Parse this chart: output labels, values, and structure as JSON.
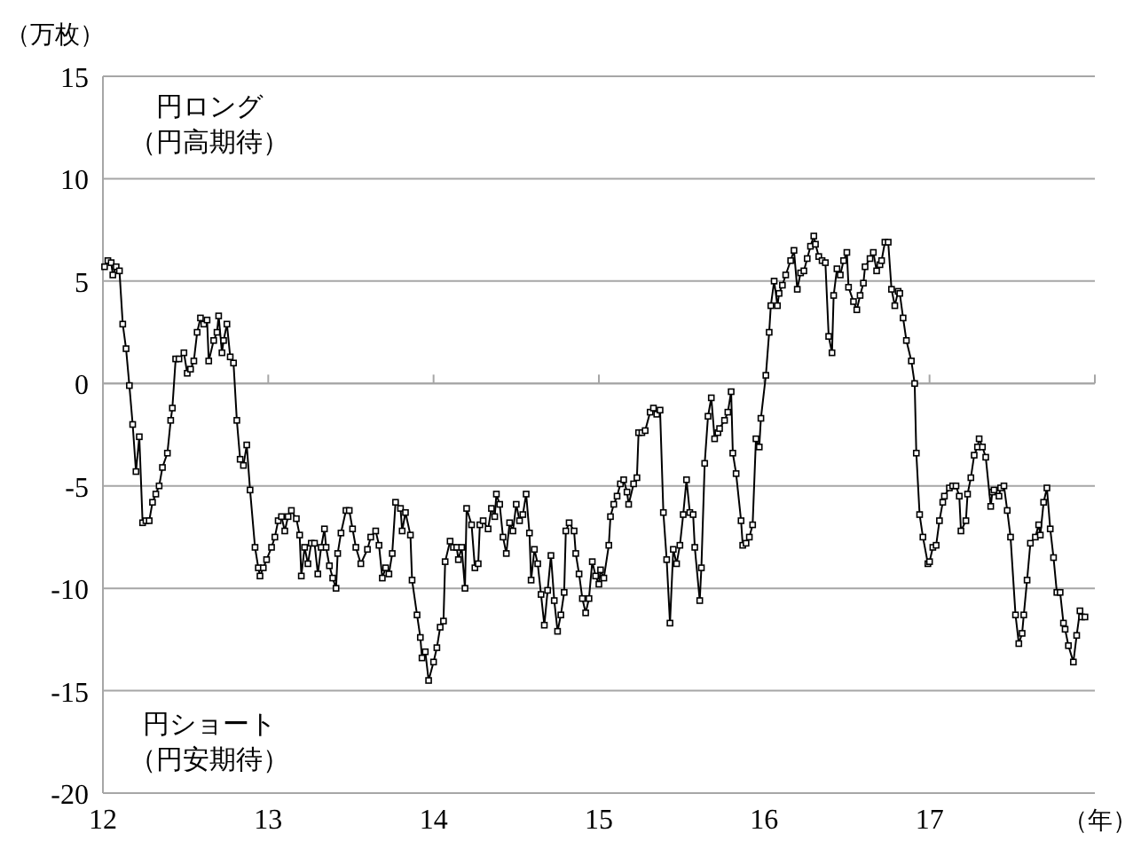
{
  "chart_data": {
    "type": "line",
    "ylabel": "（万枚）",
    "xlabel": "（年）",
    "annotations": [
      "円ロング",
      "（円高期待）",
      "円ショート",
      "（円安期待）"
    ],
    "xlim": [
      12,
      18
    ],
    "xticks": [
      12,
      13,
      14,
      15,
      16,
      17
    ],
    "ylim": [
      -20,
      15
    ],
    "yticks": [
      -20,
      -15,
      -10,
      -5,
      0,
      5,
      10,
      15
    ],
    "grid": "y",
    "marker": "square",
    "line_style": "solid",
    "series": [
      {
        "color": "#000000",
        "x": [
          12.01,
          12.03,
          12.05,
          12.06,
          12.08,
          12.1,
          12.12,
          12.14,
          12.16,
          12.18,
          12.2,
          12.22,
          12.24,
          12.26,
          12.28,
          12.3,
          12.32,
          12.34,
          12.36,
          12.39,
          12.41,
          12.42,
          12.44,
          12.46,
          12.49,
          12.51,
          12.53,
          12.55,
          12.57,
          12.59,
          12.61,
          12.63,
          12.64,
          12.67,
          12.69,
          12.7,
          12.72,
          12.73,
          12.75,
          12.77,
          12.79,
          12.81,
          12.83,
          12.85,
          12.87,
          12.89,
          12.92,
          12.94,
          12.95,
          12.97,
          12.99,
          13.02,
          13.04,
          13.06,
          13.08,
          13.1,
          13.12,
          13.14,
          13.17,
          13.19,
          13.2,
          13.22,
          13.24,
          13.26,
          13.28,
          13.3,
          13.32,
          13.34,
          13.35,
          13.37,
          13.39,
          13.41,
          13.42,
          13.44,
          13.47,
          13.49,
          13.51,
          13.53,
          13.56,
          13.6,
          13.62,
          13.65,
          13.67,
          13.69,
          13.71,
          13.73,
          13.75,
          13.77,
          13.8,
          13.81,
          13.83,
          13.86,
          13.87,
          13.9,
          13.92,
          13.93,
          13.95,
          13.97,
          14.0,
          14.02,
          14.04,
          14.06,
          14.07,
          14.1,
          14.12,
          14.14,
          14.15,
          14.17,
          14.19,
          14.2,
          14.23,
          14.25,
          14.27,
          14.28,
          14.3,
          14.33,
          14.35,
          14.37,
          14.38,
          14.4,
          14.42,
          14.44,
          14.46,
          14.48,
          14.5,
          14.52,
          14.54,
          14.56,
          14.58,
          14.59,
          14.61,
          14.63,
          14.65,
          14.67,
          14.69,
          14.71,
          14.73,
          14.75,
          14.77,
          14.79,
          14.8,
          14.82,
          14.85,
          14.86,
          14.88,
          14.9,
          14.92,
          14.94,
          14.96,
          14.98,
          15.0,
          15.01,
          15.03,
          15.06,
          15.07,
          15.09,
          15.11,
          15.13,
          15.15,
          15.17,
          15.18,
          15.21,
          15.23,
          15.24,
          15.26,
          15.28,
          15.31,
          15.33,
          15.35,
          15.37,
          15.39,
          15.41,
          15.43,
          15.45,
          15.47,
          15.49,
          15.51,
          15.53,
          15.55,
          15.57,
          15.58,
          15.61,
          15.62,
          15.64,
          15.66,
          15.68,
          15.7,
          15.72,
          15.73,
          15.76,
          15.78,
          15.8,
          15.81,
          15.83,
          15.86,
          15.87,
          15.89,
          15.91,
          15.93,
          15.95,
          15.97,
          15.98,
          16.01,
          16.03,
          16.04,
          16.06,
          16.08,
          16.09,
          16.11,
          16.13,
          16.16,
          16.18,
          16.2,
          16.22,
          16.24,
          16.26,
          16.28,
          16.3,
          16.31,
          16.33,
          16.35,
          16.37,
          16.39,
          16.41,
          16.42,
          16.44,
          16.46,
          16.48,
          16.5,
          16.51,
          16.54,
          16.56,
          16.58,
          16.6,
          16.61,
          16.64,
          16.66,
          16.68,
          16.7,
          16.71,
          16.73,
          16.75,
          16.77,
          16.79,
          16.81,
          16.82,
          16.84,
          16.86,
          16.89,
          16.91,
          16.92,
          16.94,
          16.96,
          16.99,
          17.0,
          17.02,
          17.04,
          17.06,
          17.08,
          17.09,
          17.12,
          17.14,
          17.16,
          17.18,
          17.19,
          17.22,
          17.23,
          17.25,
          17.27,
          17.29,
          17.3,
          17.32,
          17.34,
          17.37,
          17.38,
          17.39,
          17.42,
          17.43,
          17.45,
          17.47,
          17.49,
          17.52,
          17.54,
          17.56,
          17.57,
          17.59,
          17.61,
          17.64,
          17.66,
          17.67,
          17.69,
          17.71,
          17.73,
          17.75,
          17.77,
          17.79,
          17.81,
          17.82,
          17.84,
          17.87,
          17.89,
          17.91,
          17.92,
          17.94
        ],
        "values": [
          5.7,
          6.0,
          5.9,
          5.3,
          5.7,
          5.5,
          2.9,
          1.7,
          -0.1,
          -2.0,
          -4.3,
          -2.6,
          -6.8,
          -6.7,
          -6.7,
          -5.8,
          -5.4,
          -5.0,
          -4.1,
          -3.4,
          -1.8,
          -1.2,
          1.2,
          1.2,
          1.5,
          0.5,
          0.7,
          1.1,
          2.5,
          3.2,
          2.9,
          3.1,
          1.1,
          2.1,
          2.5,
          3.3,
          1.5,
          2.1,
          2.9,
          1.3,
          1.0,
          -1.8,
          -3.7,
          -4.0,
          -3.0,
          -5.2,
          -8.0,
          -9.0,
          -9.4,
          -9.0,
          -8.6,
          -8.0,
          -7.5,
          -6.7,
          -6.5,
          -7.2,
          -6.5,
          -6.2,
          -6.6,
          -7.4,
          -9.4,
          -8.0,
          -8.8,
          -7.8,
          -7.8,
          -9.3,
          -8.0,
          -7.1,
          -8.0,
          -8.9,
          -9.5,
          -10.0,
          -8.3,
          -7.3,
          -6.2,
          -6.2,
          -7.1,
          -8.0,
          -8.8,
          -8.1,
          -7.5,
          -7.2,
          -7.9,
          -9.5,
          -9.0,
          -9.3,
          -8.3,
          -5.8,
          -6.1,
          -7.2,
          -6.3,
          -7.4,
          -9.6,
          -11.3,
          -12.4,
          -13.4,
          -13.1,
          -14.5,
          -13.6,
          -12.9,
          -11.9,
          -11.6,
          -8.7,
          -7.7,
          -8.0,
          -8.0,
          -8.6,
          -8.0,
          -10.0,
          -6.1,
          -6.9,
          -9.0,
          -8.8,
          -6.9,
          -6.7,
          -7.1,
          -6.1,
          -6.5,
          -5.4,
          -5.9,
          -7.5,
          -8.3,
          -6.8,
          -7.2,
          -5.9,
          -6.7,
          -6.4,
          -5.4,
          -7.3,
          -9.6,
          -8.1,
          -8.8,
          -10.3,
          -11.8,
          -10.1,
          -8.4,
          -10.6,
          -12.1,
          -11.3,
          -10.2,
          -7.2,
          -6.8,
          -7.2,
          -8.3,
          -9.3,
          -10.5,
          -11.2,
          -10.5,
          -8.7,
          -9.4,
          -9.8,
          -9.1,
          -9.5,
          -7.9,
          -6.5,
          -5.9,
          -5.5,
          -4.9,
          -4.7,
          -5.3,
          -5.9,
          -4.9,
          -4.6,
          -2.4,
          -2.4,
          -2.3,
          -1.4,
          -1.2,
          -1.5,
          -1.3,
          -6.3,
          -8.6,
          -11.7,
          -8.1,
          -8.8,
          -7.9,
          -6.4,
          -4.7,
          -6.3,
          -6.4,
          -8.0,
          -10.6,
          -9.0,
          -3.9,
          -1.6,
          -0.7,
          -2.7,
          -2.4,
          -2.2,
          -1.8,
          -1.4,
          -0.4,
          -3.4,
          -4.4,
          -6.7,
          -7.9,
          -7.8,
          -7.5,
          -6.9,
          -2.7,
          -3.1,
          -1.7,
          0.4,
          2.5,
          3.8,
          5.0,
          3.8,
          4.4,
          4.8,
          5.3,
          6.0,
          6.5,
          4.6,
          5.4,
          5.5,
          6.1,
          6.7,
          7.2,
          6.8,
          6.2,
          6.0,
          5.9,
          2.3,
          1.5,
          4.3,
          5.6,
          5.3,
          6.0,
          6.4,
          4.7,
          4.0,
          3.6,
          4.3,
          4.9,
          5.7,
          6.1,
          6.4,
          5.5,
          5.8,
          6.0,
          6.9,
          6.9,
          4.6,
          3.8,
          4.5,
          4.4,
          3.2,
          2.1,
          1.1,
          0.0,
          -3.4,
          -6.4,
          -7.5,
          -8.8,
          -8.7,
          -8.0,
          -7.9,
          -6.7,
          -5.8,
          -5.5,
          -5.1,
          -5.0,
          -5.0,
          -5.5,
          -7.2,
          -6.7,
          -5.4,
          -4.6,
          -3.5,
          -3.1,
          -2.7,
          -3.1,
          -3.6,
          -6.0,
          -5.3,
          -5.2,
          -5.5,
          -5.1,
          -5.0,
          -6.2,
          -7.5,
          -11.3,
          -12.7,
          -12.2,
          -11.3,
          -9.6,
          -7.8,
          -7.5,
          -6.9,
          -7.4,
          -5.8,
          -5.1,
          -7.1,
          -8.5,
          -10.2,
          -10.2,
          -11.7,
          -12.0,
          -12.8,
          -13.6,
          -12.3,
          -11.1,
          -11.4,
          -11.4
        ]
      }
    ]
  }
}
